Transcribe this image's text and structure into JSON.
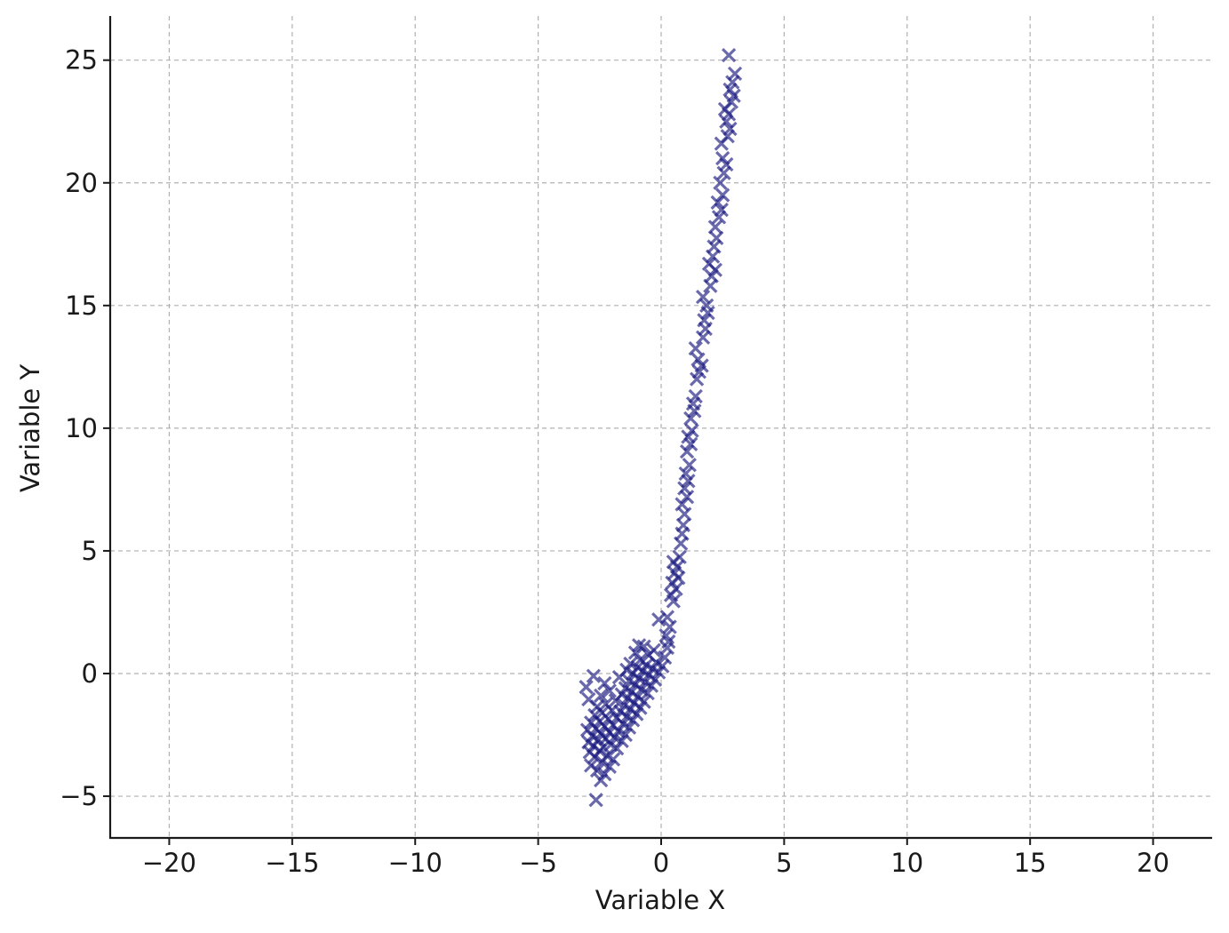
{
  "chart_data": {
    "type": "scatter",
    "title": "",
    "xlabel": "Variable X",
    "ylabel": "Variable Y",
    "xlim": [
      -22.4,
      22.4
    ],
    "ylim": [
      -6.7,
      26.8
    ],
    "xticks": [
      -20,
      -15,
      -10,
      -5,
      0,
      5,
      10,
      15,
      20
    ],
    "xtick_labels": [
      "−20",
      "−15",
      "−10",
      "−5",
      "0",
      "5",
      "10",
      "15",
      "20"
    ],
    "yticks": [
      -5,
      0,
      5,
      10,
      15,
      20,
      25
    ],
    "ytick_labels": [
      "−5",
      "0",
      "5",
      "10",
      "15",
      "20",
      "25"
    ],
    "grid": true,
    "marker": "x",
    "color": "#1a1a80",
    "series": [
      {
        "points": [
          [
            -2.65,
            -5.15
          ],
          [
            -2.45,
            -4.35
          ],
          [
            -2.3,
            -4.1
          ],
          [
            -2.6,
            -3.95
          ],
          [
            -2.1,
            -3.8
          ],
          [
            -2.85,
            -3.75
          ],
          [
            -2.4,
            -3.6
          ],
          [
            -1.95,
            -3.5
          ],
          [
            -2.7,
            -3.4
          ],
          [
            -2.2,
            -3.35
          ],
          [
            -2.9,
            -3.2
          ],
          [
            -2.5,
            -3.15
          ],
          [
            -1.8,
            -3.05
          ],
          [
            -2.35,
            -3.0
          ],
          [
            -2.75,
            -2.95
          ],
          [
            -2.05,
            -2.9
          ],
          [
            -2.95,
            -2.8
          ],
          [
            -1.6,
            -2.75
          ],
          [
            -2.55,
            -2.7
          ],
          [
            -2.25,
            -2.65
          ],
          [
            -1.9,
            -2.6
          ],
          [
            -2.8,
            -2.55
          ],
          [
            -1.45,
            -2.5
          ],
          [
            -2.45,
            -2.45
          ],
          [
            -2.1,
            -2.4
          ],
          [
            -1.75,
            -2.35
          ],
          [
            -3.0,
            -2.3
          ],
          [
            -2.65,
            -2.25
          ],
          [
            -1.3,
            -2.2
          ],
          [
            -2.3,
            -2.15
          ],
          [
            -1.95,
            -2.1
          ],
          [
            -1.55,
            -2.05
          ],
          [
            -2.85,
            -2.0
          ],
          [
            -2.5,
            -1.95
          ],
          [
            -1.15,
            -1.9
          ],
          [
            -2.15,
            -1.85
          ],
          [
            -1.8,
            -1.8
          ],
          [
            -1.4,
            -1.75
          ],
          [
            -2.7,
            -1.7
          ],
          [
            -1.0,
            -1.65
          ],
          [
            -2.4,
            -1.6
          ],
          [
            -1.65,
            -1.55
          ],
          [
            -2.0,
            -1.5
          ],
          [
            -1.25,
            -1.45
          ],
          [
            -0.85,
            -1.4
          ],
          [
            -2.6,
            -1.35
          ],
          [
            -1.5,
            -1.3
          ],
          [
            -2.25,
            -1.25
          ],
          [
            -1.1,
            -1.2
          ],
          [
            -0.7,
            -1.15
          ],
          [
            -1.85,
            -1.1
          ],
          [
            -2.95,
            -1.05
          ],
          [
            -1.35,
            -1.0
          ],
          [
            -0.95,
            -0.95
          ],
          [
            -2.45,
            -0.9
          ],
          [
            -1.6,
            -0.85
          ],
          [
            -0.55,
            -0.8
          ],
          [
            -1.2,
            -0.75
          ],
          [
            -2.1,
            -0.7
          ],
          [
            -0.8,
            -0.65
          ],
          [
            -1.45,
            -0.6
          ],
          [
            -3.05,
            -0.55
          ],
          [
            -0.4,
            -0.5
          ],
          [
            -1.05,
            -0.45
          ],
          [
            -2.3,
            -0.4
          ],
          [
            -0.65,
            -0.35
          ],
          [
            -1.3,
            -0.3
          ],
          [
            -0.25,
            -0.25
          ],
          [
            -0.9,
            -0.2
          ],
          [
            -1.7,
            -0.15
          ],
          [
            -2.75,
            -0.1
          ],
          [
            -0.5,
            -0.05
          ],
          [
            -1.15,
            0.0
          ],
          [
            -0.1,
            0.05
          ],
          [
            -0.75,
            0.1
          ],
          [
            -1.4,
            0.15
          ],
          [
            -0.35,
            0.2
          ],
          [
            -0.95,
            0.25
          ],
          [
            0.05,
            0.3
          ],
          [
            -0.6,
            0.35
          ],
          [
            -1.25,
            0.4
          ],
          [
            -0.2,
            0.45
          ],
          [
            -0.85,
            0.55
          ],
          [
            0.15,
            0.65
          ],
          [
            -0.5,
            0.75
          ],
          [
            -1.05,
            0.85
          ],
          [
            -0.3,
            0.95
          ],
          [
            0.25,
            1.05
          ],
          [
            -0.7,
            1.1
          ],
          [
            -0.9,
            1.15
          ],
          [
            0.3,
            1.3
          ],
          [
            0.2,
            1.55
          ],
          [
            0.35,
            1.9
          ],
          [
            -0.1,
            2.2
          ],
          [
            0.25,
            2.3
          ],
          [
            0.5,
            2.95
          ],
          [
            0.4,
            3.2
          ],
          [
            0.6,
            3.45
          ],
          [
            0.45,
            3.7
          ],
          [
            0.7,
            3.9
          ],
          [
            0.55,
            4.1
          ],
          [
            0.65,
            4.35
          ],
          [
            0.5,
            4.55
          ],
          [
            0.75,
            4.75
          ],
          [
            0.8,
            5.3
          ],
          [
            0.85,
            5.7
          ],
          [
            0.9,
            6.05
          ],
          [
            0.95,
            6.5
          ],
          [
            0.85,
            6.9
          ],
          [
            1.05,
            7.2
          ],
          [
            0.95,
            7.55
          ],
          [
            1.1,
            7.85
          ],
          [
            1.0,
            8.15
          ],
          [
            1.15,
            8.5
          ],
          [
            1.05,
            9.05
          ],
          [
            1.2,
            9.35
          ],
          [
            1.1,
            9.65
          ],
          [
            1.25,
            9.9
          ],
          [
            1.2,
            10.4
          ],
          [
            1.35,
            10.7
          ],
          [
            1.3,
            11.0
          ],
          [
            1.4,
            11.3
          ],
          [
            1.45,
            12.0
          ],
          [
            1.55,
            12.3
          ],
          [
            1.65,
            12.55
          ],
          [
            1.5,
            12.8
          ],
          [
            1.4,
            13.25
          ],
          [
            1.7,
            13.7
          ],
          [
            1.8,
            14.05
          ],
          [
            1.75,
            14.4
          ],
          [
            1.9,
            14.7
          ],
          [
            1.85,
            15.0
          ],
          [
            1.7,
            15.35
          ],
          [
            2.0,
            15.8
          ],
          [
            2.05,
            16.2
          ],
          [
            2.2,
            16.45
          ],
          [
            1.95,
            16.7
          ],
          [
            2.1,
            17.0
          ],
          [
            2.15,
            17.4
          ],
          [
            2.25,
            17.75
          ],
          [
            2.2,
            18.2
          ],
          [
            2.35,
            18.6
          ],
          [
            2.45,
            18.9
          ],
          [
            2.3,
            19.2
          ],
          [
            2.5,
            19.5
          ],
          [
            2.4,
            20.0
          ],
          [
            2.55,
            20.4
          ],
          [
            2.65,
            20.75
          ],
          [
            2.5,
            21.0
          ],
          [
            2.45,
            21.6
          ],
          [
            2.7,
            21.9
          ],
          [
            2.8,
            22.2
          ],
          [
            2.65,
            22.5
          ],
          [
            2.75,
            22.8
          ],
          [
            2.6,
            23.0
          ],
          [
            2.85,
            23.3
          ],
          [
            2.95,
            23.55
          ],
          [
            2.8,
            23.8
          ],
          [
            2.9,
            24.1
          ],
          [
            3.0,
            24.45
          ],
          [
            2.75,
            25.2
          ]
        ]
      }
    ]
  }
}
